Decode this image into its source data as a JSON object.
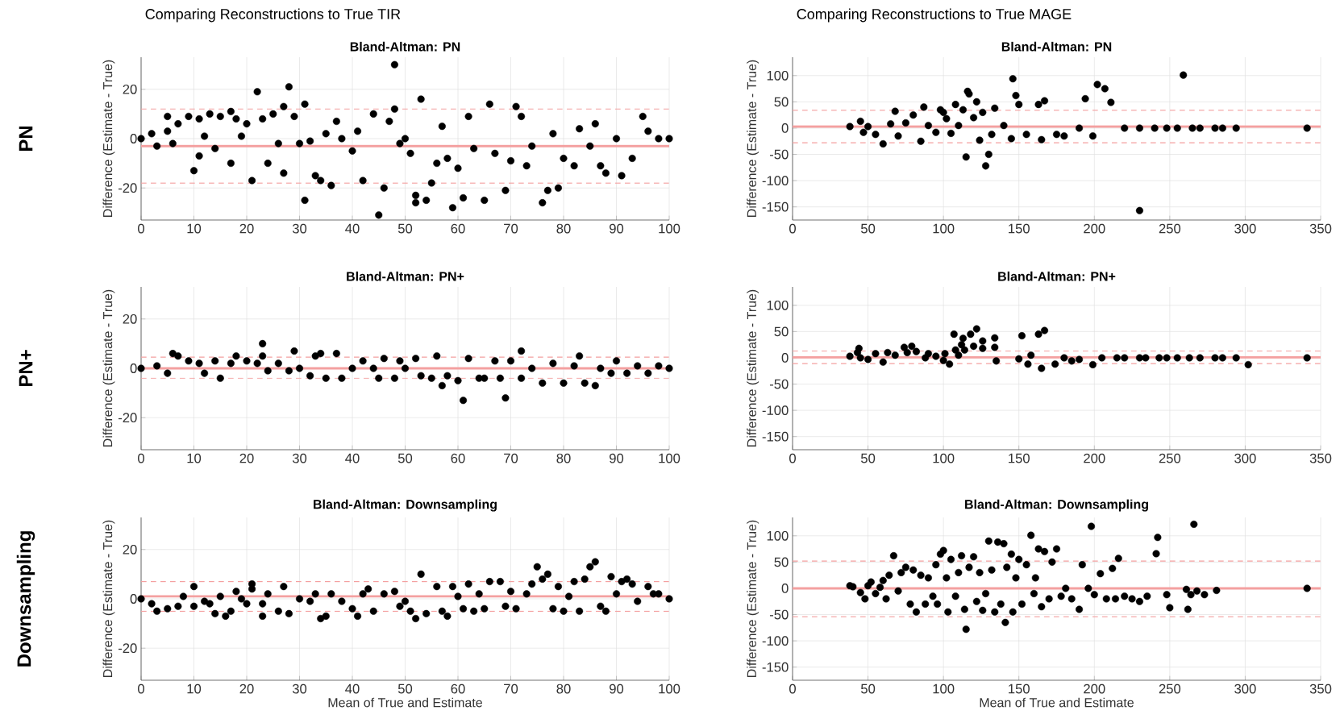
{
  "chart_data": [
    {
      "type": "scatter",
      "title": "Bland-Altman: PN",
      "ylabel": "Difference (Estimate - True)",
      "annotations": [
        "Comparing Reconstructions to True TIR",
        "PN"
      ],
      "color": "#000000",
      "marker": "circle",
      "grid": true,
      "xlim": [
        0,
        100
      ],
      "ylim": [
        -33,
        33
      ],
      "xticks": [
        0,
        10,
        20,
        30,
        40,
        50,
        60,
        70,
        80,
        90,
        100
      ],
      "yticks": [
        -20,
        0,
        20
      ],
      "ref_lines": [
        {
          "axis": "y",
          "value": -3,
          "color": "#f4a0a0",
          "line_style": "solid"
        },
        {
          "axis": "y",
          "value": 12,
          "color": "#f4a0a0",
          "line_style": "dashed"
        },
        {
          "axis": "y",
          "value": -18,
          "color": "#f4a0a0",
          "line_style": "dashed"
        }
      ],
      "x": [
        0,
        2,
        3,
        5,
        5,
        6,
        7,
        9,
        10,
        11,
        11,
        12,
        13,
        14,
        15,
        17,
        17,
        18,
        19,
        20,
        21,
        22,
        23,
        24,
        25,
        26,
        27,
        27,
        28,
        29,
        30,
        31,
        31,
        32,
        33,
        34,
        35,
        36,
        37,
        38,
        40,
        41,
        42,
        44,
        45,
        46,
        47,
        48,
        48,
        49,
        50,
        51,
        52,
        52,
        53,
        54,
        55,
        56,
        57,
        58,
        59,
        60,
        61,
        62,
        63,
        65,
        66,
        67,
        69,
        70,
        71,
        72,
        73,
        74,
        76,
        77,
        78,
        79,
        80,
        82,
        83,
        85,
        86,
        87,
        88,
        90,
        91,
        93,
        95,
        96,
        98,
        100
      ],
      "values": [
        0,
        2,
        -3,
        9,
        3,
        -2,
        6,
        9,
        -13,
        -7,
        8,
        1,
        10,
        -4,
        9,
        11,
        -10,
        8,
        1,
        6,
        -17,
        19,
        8,
        -10,
        10,
        -2,
        13,
        -14,
        21,
        9,
        -2,
        -25,
        14,
        -1,
        -15,
        -17,
        2,
        -19,
        7,
        0,
        -5,
        3,
        -17,
        10,
        -31,
        -20,
        7,
        12,
        30,
        -2,
        0,
        -6,
        -23,
        -26,
        16,
        -25,
        -18,
        -10,
        5,
        -8,
        -28,
        -12,
        -24,
        9,
        -4,
        -25,
        14,
        -6,
        -21,
        -9,
        13,
        9,
        -11,
        -3,
        -26,
        -21,
        2,
        -20,
        -8,
        -11,
        4,
        -3,
        6,
        -11,
        -14,
        0,
        -15,
        -8,
        9,
        3,
        0,
        0
      ]
    },
    {
      "type": "scatter",
      "title": "Bland-Altman: PN",
      "ylabel": "Difference (Estimate - True)",
      "annotations": [
        "Comparing Reconstructions to True MAGE"
      ],
      "color": "#000000",
      "marker": "circle",
      "grid": true,
      "xlim": [
        0,
        350
      ],
      "ylim": [
        -175,
        135
      ],
      "xticks": [
        0,
        50,
        100,
        150,
        200,
        250,
        300,
        350
      ],
      "yticks": [
        -150,
        -100,
        -50,
        0,
        50,
        100
      ],
      "ref_lines": [
        {
          "axis": "y",
          "value": 3,
          "color": "#f4a0a0",
          "line_style": "solid"
        },
        {
          "axis": "y",
          "value": 34,
          "color": "#f4a0a0",
          "line_style": "dashed"
        },
        {
          "axis": "y",
          "value": -28,
          "color": "#f4a0a0",
          "line_style": "dashed"
        }
      ],
      "x": [
        38,
        45,
        47,
        50,
        55,
        60,
        65,
        68,
        70,
        75,
        80,
        85,
        87,
        90,
        95,
        98,
        100,
        102,
        105,
        108,
        110,
        113,
        115,
        116,
        117,
        120,
        122,
        124,
        126,
        128,
        130,
        132,
        134,
        140,
        145,
        146,
        148,
        150,
        155,
        163,
        165,
        167,
        175,
        180,
        190,
        194,
        199,
        202,
        207,
        211,
        220,
        230,
        230,
        240,
        248,
        255,
        259,
        265,
        270,
        280,
        285,
        294,
        341
      ],
      "values": [
        3,
        13,
        -8,
        3,
        -12,
        -30,
        8,
        32,
        -15,
        10,
        25,
        -25,
        40,
        5,
        -8,
        35,
        30,
        18,
        -10,
        45,
        5,
        35,
        -55,
        70,
        65,
        20,
        50,
        -23,
        30,
        -72,
        -50,
        -12,
        38,
        5,
        -20,
        94,
        62,
        45,
        -12,
        45,
        -22,
        52,
        -12,
        -15,
        0,
        56,
        -15,
        83,
        75,
        49,
        0,
        0,
        -157,
        0,
        0,
        0,
        101,
        0,
        0,
        0,
        0,
        0,
        0
      ]
    },
    {
      "type": "scatter",
      "title": "Bland-Altman: PN+",
      "ylabel": "Difference (Estimate - True)",
      "annotations": [
        "PN+"
      ],
      "color": "#000000",
      "marker": "circle",
      "grid": true,
      "xlim": [
        0,
        100
      ],
      "ylim": [
        -33,
        33
      ],
      "xticks": [
        0,
        10,
        20,
        30,
        40,
        50,
        60,
        70,
        80,
        90,
        100
      ],
      "yticks": [
        -20,
        0,
        20
      ],
      "ref_lines": [
        {
          "axis": "y",
          "value": 0,
          "color": "#f4a0a0",
          "line_style": "solid"
        },
        {
          "axis": "y",
          "value": 4.5,
          "color": "#f4a0a0",
          "line_style": "dashed"
        },
        {
          "axis": "y",
          "value": -4,
          "color": "#f4a0a0",
          "line_style": "dashed"
        }
      ],
      "x": [
        0,
        3,
        5,
        6,
        7,
        9,
        11,
        12,
        14,
        15,
        17,
        18,
        20,
        22,
        23,
        23,
        24,
        26,
        28,
        29,
        30,
        32,
        33,
        34,
        35,
        37,
        38,
        40,
        42,
        44,
        45,
        46,
        48,
        49,
        50,
        52,
        53,
        55,
        56,
        57,
        58,
        60,
        61,
        62,
        64,
        65,
        67,
        68,
        69,
        70,
        72,
        72,
        74,
        76,
        78,
        80,
        82,
        83,
        84,
        86,
        87,
        89,
        90,
        92,
        94,
        96,
        98,
        100
      ],
      "values": [
        0,
        1,
        -2,
        6,
        5,
        3,
        2,
        -2,
        3,
        -4,
        2,
        5,
        3,
        2,
        10,
        5,
        -1,
        2,
        -1,
        7,
        0,
        -3,
        5,
        6,
        -4,
        6,
        -4,
        0,
        3,
        0,
        -4,
        4,
        -4,
        3,
        0,
        4,
        -3,
        -4,
        5,
        -7,
        -3,
        -5,
        -13,
        4,
        -4,
        -4,
        3,
        -4,
        -12,
        3,
        7,
        -4,
        0,
        -6,
        2,
        -6,
        1,
        5,
        -6,
        -7,
        0,
        -2,
        3,
        -2,
        1,
        -2,
        1,
        0
      ]
    },
    {
      "type": "scatter",
      "title": "Bland-Altman: PN+",
      "ylabel": "Difference (Estimate - True)",
      "color": "#000000",
      "marker": "circle",
      "grid": true,
      "xlim": [
        0,
        350
      ],
      "ylim": [
        -175,
        135
      ],
      "xticks": [
        0,
        50,
        100,
        150,
        200,
        250,
        300,
        350
      ],
      "yticks": [
        -150,
        -100,
        -50,
        0,
        50,
        100
      ],
      "ref_lines": [
        {
          "axis": "y",
          "value": 1,
          "color": "#f4a0a0",
          "line_style": "solid"
        },
        {
          "axis": "y",
          "value": 13,
          "color": "#f4a0a0",
          "line_style": "dashed"
        },
        {
          "axis": "y",
          "value": -11,
          "color": "#f4a0a0",
          "line_style": "dashed"
        }
      ],
      "x": [
        38,
        43,
        44,
        45,
        50,
        55,
        60,
        63,
        68,
        74,
        76,
        79,
        82,
        88,
        90,
        95,
        100,
        101,
        104,
        107,
        108,
        110,
        112,
        113,
        114,
        118,
        120,
        122,
        126,
        126,
        134,
        134,
        135,
        150,
        152,
        156,
        158,
        163,
        165,
        167,
        174,
        180,
        185,
        190,
        199,
        205,
        215,
        220,
        230,
        234,
        243,
        248,
        255,
        263,
        270,
        280,
        285,
        294,
        302,
        341
      ],
      "values": [
        3,
        10,
        18,
        0,
        -3,
        8,
        -8,
        10,
        5,
        20,
        10,
        22,
        12,
        0,
        8,
        3,
        -5,
        8,
        -12,
        45,
        15,
        5,
        25,
        37,
        15,
        45,
        22,
        55,
        18,
        32,
        20,
        38,
        -6,
        -2,
        42,
        -12,
        5,
        45,
        -20,
        52,
        -12,
        0,
        -6,
        -3,
        -13,
        0,
        0,
        0,
        0,
        0,
        0,
        0,
        0,
        0,
        0,
        0,
        0,
        0,
        -13,
        0
      ]
    },
    {
      "type": "scatter",
      "title": "Bland-Altman: Downsampling",
      "xlabel": "Mean of True and Estimate",
      "ylabel": "Difference (Estimate - True)",
      "annotations": [
        "Downsampling"
      ],
      "color": "#000000",
      "marker": "circle",
      "grid": true,
      "xlim": [
        0,
        100
      ],
      "ylim": [
        -33,
        33
      ],
      "xticks": [
        0,
        10,
        20,
        30,
        40,
        50,
        60,
        70,
        80,
        90,
        100
      ],
      "yticks": [
        -20,
        0,
        20
      ],
      "ref_lines": [
        {
          "axis": "y",
          "value": 1,
          "color": "#f4a0a0",
          "line_style": "solid"
        },
        {
          "axis": "y",
          "value": 7,
          "color": "#f4a0a0",
          "line_style": "dashed"
        },
        {
          "axis": "y",
          "value": -5,
          "color": "#f4a0a0",
          "line_style": "dashed"
        }
      ],
      "x": [
        0,
        2,
        3,
        5,
        7,
        8,
        10,
        10,
        12,
        13,
        14,
        15,
        16,
        17,
        18,
        19,
        20,
        21,
        21,
        23,
        23,
        24,
        26,
        27,
        28,
        30,
        32,
        33,
        34,
        35,
        36,
        38,
        40,
        41,
        42,
        43,
        44,
        46,
        48,
        49,
        50,
        51,
        52,
        53,
        54,
        56,
        57,
        58,
        59,
        60,
        61,
        62,
        63,
        64,
        65,
        66,
        68,
        69,
        70,
        71,
        73,
        74,
        75,
        76,
        77,
        78,
        79,
        80,
        81,
        82,
        83,
        84,
        85,
        86,
        87,
        88,
        89,
        90,
        91,
        92,
        93,
        94,
        96,
        97,
        98,
        100
      ],
      "values": [
        0,
        -2,
        -5,
        -4,
        -3,
        1,
        -3,
        5,
        -1,
        -2,
        -6,
        1,
        -7,
        -5,
        3,
        0,
        -2,
        6,
        4,
        -2,
        -7,
        2,
        -5,
        5,
        -6,
        0,
        -1,
        2,
        -8,
        -7,
        2,
        -1,
        -4,
        -7,
        2,
        4,
        -5,
        2,
        3,
        -3,
        -1,
        -5,
        -8,
        10,
        -6,
        5,
        -5,
        -7,
        5,
        1,
        -4,
        6,
        -5,
        2,
        -4,
        7,
        7,
        -3,
        3,
        -4,
        2,
        6,
        13,
        8,
        10,
        -4,
        5,
        -5,
        1,
        7,
        -5,
        8,
        13,
        15,
        -3,
        -5,
        9,
        2,
        7,
        8,
        6,
        -1,
        5,
        2,
        2,
        0
      ]
    },
    {
      "type": "scatter",
      "title": "Bland-Altman: Downsampling",
      "xlabel": "Mean of True and Estimate",
      "ylabel": "Difference (Estimate - True)",
      "color": "#000000",
      "marker": "circle",
      "grid": true,
      "xlim": [
        0,
        350
      ],
      "ylim": [
        -175,
        135
      ],
      "xticks": [
        0,
        50,
        100,
        150,
        200,
        250,
        300,
        350
      ],
      "yticks": [
        -150,
        -100,
        -50,
        0,
        50,
        100
      ],
      "ref_lines": [
        {
          "axis": "y",
          "value": 0,
          "color": "#f4a0a0",
          "line_style": "solid"
        },
        {
          "axis": "y",
          "value": 52,
          "color": "#f4a0a0",
          "line_style": "dashed"
        },
        {
          "axis": "y",
          "value": -54,
          "color": "#f4a0a0",
          "line_style": "dashed"
        }
      ],
      "x": [
        38,
        40,
        45,
        48,
        50,
        52,
        55,
        58,
        60,
        62,
        64,
        67,
        70,
        72,
        75,
        78,
        80,
        82,
        85,
        88,
        90,
        93,
        95,
        96,
        98,
        100,
        102,
        103,
        105,
        108,
        110,
        112,
        114,
        115,
        117,
        120,
        122,
        124,
        126,
        128,
        130,
        132,
        134,
        136,
        138,
        140,
        141,
        142,
        145,
        146,
        148,
        150,
        152,
        155,
        158,
        160,
        161,
        163,
        165,
        167,
        170,
        172,
        175,
        178,
        181,
        185,
        190,
        192,
        196,
        198,
        200,
        204,
        208,
        212,
        214,
        216,
        220,
        225,
        230,
        235,
        241,
        242,
        248,
        250,
        261,
        262,
        264,
        266,
        268,
        273,
        281,
        341
      ],
      "values": [
        5,
        3,
        -8,
        -20,
        5,
        12,
        -10,
        2,
        15,
        -20,
        25,
        62,
        -5,
        30,
        40,
        -30,
        35,
        -45,
        25,
        -30,
        20,
        -15,
        45,
        -30,
        65,
        72,
        20,
        -45,
        55,
        -15,
        30,
        62,
        -40,
        -78,
        40,
        60,
        -25,
        30,
        -42,
        -10,
        90,
        35,
        -45,
        88,
        -30,
        85,
        -65,
        40,
        65,
        -45,
        20,
        55,
        -30,
        45,
        101,
        -10,
        20,
        75,
        -35,
        70,
        -20,
        50,
        75,
        -15,
        0,
        -20,
        -40,
        45,
        0,
        118,
        -12,
        28,
        -20,
        38,
        -20,
        57,
        -15,
        -20,
        -25,
        -15,
        66,
        97,
        -12,
        -37,
        -2,
        -40,
        -12,
        122,
        -5,
        -12,
        -4,
        0
      ]
    }
  ]
}
